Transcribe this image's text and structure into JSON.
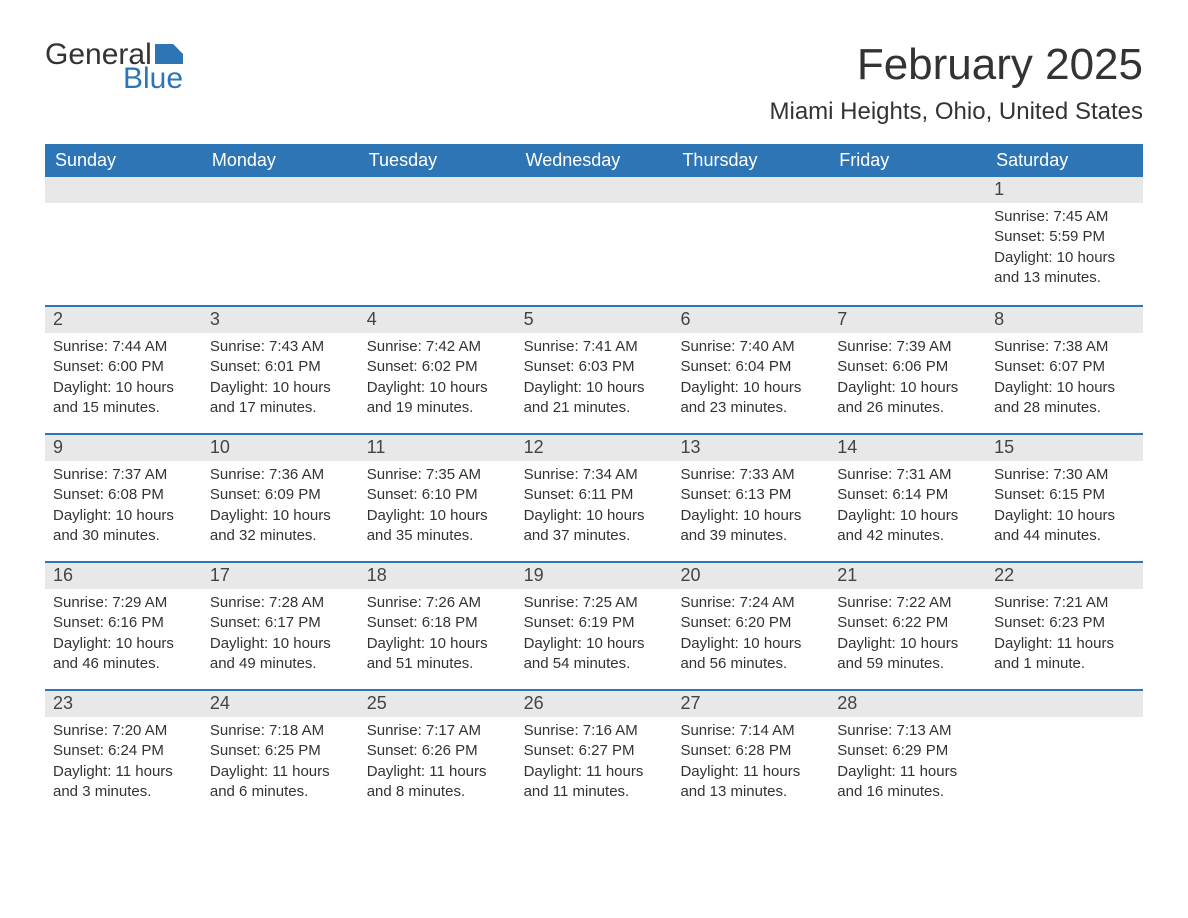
{
  "logo": {
    "text1": "General",
    "text2": "Blue",
    "flag_color": "#2e75b6"
  },
  "title": "February 2025",
  "location": "Miami Heights, Ohio, United States",
  "colors": {
    "header_bg": "#2e75b6",
    "header_text": "#ffffff",
    "daynum_bg": "#e8e8e8",
    "row_border": "#2e75b6",
    "text": "#333333",
    "background": "#ffffff"
  },
  "typography": {
    "title_fontsize": 44,
    "location_fontsize": 24,
    "dayhead_fontsize": 18,
    "daynum_fontsize": 18,
    "body_fontsize": 15
  },
  "day_headers": [
    "Sunday",
    "Monday",
    "Tuesday",
    "Wednesday",
    "Thursday",
    "Friday",
    "Saturday"
  ],
  "weeks": [
    [
      null,
      null,
      null,
      null,
      null,
      null,
      {
        "num": "1",
        "sunrise": "Sunrise: 7:45 AM",
        "sunset": "Sunset: 5:59 PM",
        "daylight1": "Daylight: 10 hours",
        "daylight2": "and 13 minutes."
      }
    ],
    [
      {
        "num": "2",
        "sunrise": "Sunrise: 7:44 AM",
        "sunset": "Sunset: 6:00 PM",
        "daylight1": "Daylight: 10 hours",
        "daylight2": "and 15 minutes."
      },
      {
        "num": "3",
        "sunrise": "Sunrise: 7:43 AM",
        "sunset": "Sunset: 6:01 PM",
        "daylight1": "Daylight: 10 hours",
        "daylight2": "and 17 minutes."
      },
      {
        "num": "4",
        "sunrise": "Sunrise: 7:42 AM",
        "sunset": "Sunset: 6:02 PM",
        "daylight1": "Daylight: 10 hours",
        "daylight2": "and 19 minutes."
      },
      {
        "num": "5",
        "sunrise": "Sunrise: 7:41 AM",
        "sunset": "Sunset: 6:03 PM",
        "daylight1": "Daylight: 10 hours",
        "daylight2": "and 21 minutes."
      },
      {
        "num": "6",
        "sunrise": "Sunrise: 7:40 AM",
        "sunset": "Sunset: 6:04 PM",
        "daylight1": "Daylight: 10 hours",
        "daylight2": "and 23 minutes."
      },
      {
        "num": "7",
        "sunrise": "Sunrise: 7:39 AM",
        "sunset": "Sunset: 6:06 PM",
        "daylight1": "Daylight: 10 hours",
        "daylight2": "and 26 minutes."
      },
      {
        "num": "8",
        "sunrise": "Sunrise: 7:38 AM",
        "sunset": "Sunset: 6:07 PM",
        "daylight1": "Daylight: 10 hours",
        "daylight2": "and 28 minutes."
      }
    ],
    [
      {
        "num": "9",
        "sunrise": "Sunrise: 7:37 AM",
        "sunset": "Sunset: 6:08 PM",
        "daylight1": "Daylight: 10 hours",
        "daylight2": "and 30 minutes."
      },
      {
        "num": "10",
        "sunrise": "Sunrise: 7:36 AM",
        "sunset": "Sunset: 6:09 PM",
        "daylight1": "Daylight: 10 hours",
        "daylight2": "and 32 minutes."
      },
      {
        "num": "11",
        "sunrise": "Sunrise: 7:35 AM",
        "sunset": "Sunset: 6:10 PM",
        "daylight1": "Daylight: 10 hours",
        "daylight2": "and 35 minutes."
      },
      {
        "num": "12",
        "sunrise": "Sunrise: 7:34 AM",
        "sunset": "Sunset: 6:11 PM",
        "daylight1": "Daylight: 10 hours",
        "daylight2": "and 37 minutes."
      },
      {
        "num": "13",
        "sunrise": "Sunrise: 7:33 AM",
        "sunset": "Sunset: 6:13 PM",
        "daylight1": "Daylight: 10 hours",
        "daylight2": "and 39 minutes."
      },
      {
        "num": "14",
        "sunrise": "Sunrise: 7:31 AM",
        "sunset": "Sunset: 6:14 PM",
        "daylight1": "Daylight: 10 hours",
        "daylight2": "and 42 minutes."
      },
      {
        "num": "15",
        "sunrise": "Sunrise: 7:30 AM",
        "sunset": "Sunset: 6:15 PM",
        "daylight1": "Daylight: 10 hours",
        "daylight2": "and 44 minutes."
      }
    ],
    [
      {
        "num": "16",
        "sunrise": "Sunrise: 7:29 AM",
        "sunset": "Sunset: 6:16 PM",
        "daylight1": "Daylight: 10 hours",
        "daylight2": "and 46 minutes."
      },
      {
        "num": "17",
        "sunrise": "Sunrise: 7:28 AM",
        "sunset": "Sunset: 6:17 PM",
        "daylight1": "Daylight: 10 hours",
        "daylight2": "and 49 minutes."
      },
      {
        "num": "18",
        "sunrise": "Sunrise: 7:26 AM",
        "sunset": "Sunset: 6:18 PM",
        "daylight1": "Daylight: 10 hours",
        "daylight2": "and 51 minutes."
      },
      {
        "num": "19",
        "sunrise": "Sunrise: 7:25 AM",
        "sunset": "Sunset: 6:19 PM",
        "daylight1": "Daylight: 10 hours",
        "daylight2": "and 54 minutes."
      },
      {
        "num": "20",
        "sunrise": "Sunrise: 7:24 AM",
        "sunset": "Sunset: 6:20 PM",
        "daylight1": "Daylight: 10 hours",
        "daylight2": "and 56 minutes."
      },
      {
        "num": "21",
        "sunrise": "Sunrise: 7:22 AM",
        "sunset": "Sunset: 6:22 PM",
        "daylight1": "Daylight: 10 hours",
        "daylight2": "and 59 minutes."
      },
      {
        "num": "22",
        "sunrise": "Sunrise: 7:21 AM",
        "sunset": "Sunset: 6:23 PM",
        "daylight1": "Daylight: 11 hours",
        "daylight2": "and 1 minute."
      }
    ],
    [
      {
        "num": "23",
        "sunrise": "Sunrise: 7:20 AM",
        "sunset": "Sunset: 6:24 PM",
        "daylight1": "Daylight: 11 hours",
        "daylight2": "and 3 minutes."
      },
      {
        "num": "24",
        "sunrise": "Sunrise: 7:18 AM",
        "sunset": "Sunset: 6:25 PM",
        "daylight1": "Daylight: 11 hours",
        "daylight2": "and 6 minutes."
      },
      {
        "num": "25",
        "sunrise": "Sunrise: 7:17 AM",
        "sunset": "Sunset: 6:26 PM",
        "daylight1": "Daylight: 11 hours",
        "daylight2": "and 8 minutes."
      },
      {
        "num": "26",
        "sunrise": "Sunrise: 7:16 AM",
        "sunset": "Sunset: 6:27 PM",
        "daylight1": "Daylight: 11 hours",
        "daylight2": "and 11 minutes."
      },
      {
        "num": "27",
        "sunrise": "Sunrise: 7:14 AM",
        "sunset": "Sunset: 6:28 PM",
        "daylight1": "Daylight: 11 hours",
        "daylight2": "and 13 minutes."
      },
      {
        "num": "28",
        "sunrise": "Sunrise: 7:13 AM",
        "sunset": "Sunset: 6:29 PM",
        "daylight1": "Daylight: 11 hours",
        "daylight2": "and 16 minutes."
      },
      null
    ]
  ]
}
